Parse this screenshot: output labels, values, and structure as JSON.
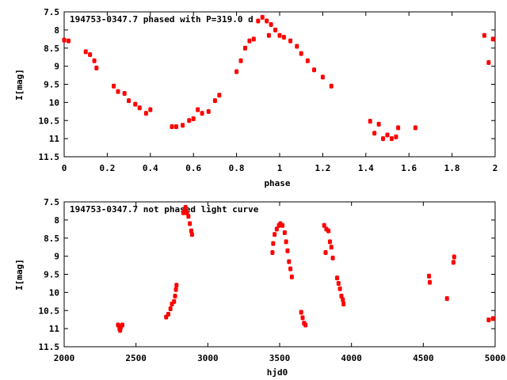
{
  "colors": {
    "points": "#ff0000",
    "axes": "#000000"
  },
  "chart_data": [
    {
      "type": "scatter",
      "title": "194753-0347.7 phased with P=319.0 d",
      "xlabel": "phase",
      "ylabel": "I[mag]",
      "xlim": [
        0,
        2
      ],
      "ylim": [
        7.5,
        11.5
      ],
      "y_inverted": true,
      "grid": false,
      "xticks": [
        "0",
        "0.2",
        "0.4",
        "0.6",
        "0.8",
        "1",
        "1.2",
        "1.4",
        "1.6",
        "1.8",
        "2"
      ],
      "yticks": [
        "7.5",
        "8",
        "8.5",
        "9",
        "9.5",
        "10",
        "10.5",
        "11",
        "11.5"
      ],
      "points": [
        [
          0,
          8.28
        ],
        [
          0.02,
          8.3
        ],
        [
          0.1,
          8.6
        ],
        [
          0.12,
          8.68
        ],
        [
          0.14,
          8.85
        ],
        [
          0.15,
          9.05
        ],
        [
          0.23,
          9.55
        ],
        [
          0.25,
          9.7
        ],
        [
          0.28,
          9.75
        ],
        [
          0.3,
          9.95
        ],
        [
          0.33,
          10.05
        ],
        [
          0.35,
          10.15
        ],
        [
          0.38,
          10.3
        ],
        [
          0.4,
          10.2
        ],
        [
          0.5,
          10.67
        ],
        [
          0.52,
          10.67
        ],
        [
          0.55,
          10.63
        ],
        [
          0.58,
          10.5
        ],
        [
          0.6,
          10.45
        ],
        [
          0.62,
          10.2
        ],
        [
          0.64,
          10.3
        ],
        [
          0.67,
          10.25
        ],
        [
          0.7,
          9.95
        ],
        [
          0.72,
          9.8
        ],
        [
          0.8,
          9.15
        ],
        [
          0.82,
          8.85
        ],
        [
          0.84,
          8.5
        ],
        [
          0.86,
          8.3
        ],
        [
          0.88,
          8.25
        ],
        [
          0.9,
          7.75
        ],
        [
          0.92,
          7.65
        ],
        [
          0.94,
          7.75
        ],
        [
          0.96,
          7.85
        ],
        [
          0.98,
          8.0
        ],
        [
          0.95,
          8.15
        ],
        [
          1.0,
          8.15
        ],
        [
          1.02,
          8.2
        ],
        [
          1.05,
          8.3
        ],
        [
          1.08,
          8.45
        ],
        [
          1.1,
          8.65
        ],
        [
          1.13,
          8.85
        ],
        [
          1.16,
          9.1
        ],
        [
          1.2,
          9.3
        ],
        [
          1.24,
          9.55
        ],
        [
          1.42,
          10.52
        ],
        [
          1.44,
          10.85
        ],
        [
          1.46,
          10.6
        ],
        [
          1.48,
          11.0
        ],
        [
          1.5,
          10.9
        ],
        [
          1.52,
          11.0
        ],
        [
          1.54,
          10.95
        ],
        [
          1.55,
          10.7
        ],
        [
          1.63,
          10.7
        ],
        [
          1.95,
          8.15
        ],
        [
          1.97,
          8.9
        ],
        [
          1.99,
          8.25
        ]
      ]
    },
    {
      "type": "scatter",
      "title": "194753-0347.7 not phased light curve",
      "xlabel": "hjd0",
      "ylabel": "I[mag]",
      "xlim": [
        2000,
        5000
      ],
      "ylim": [
        7.5,
        11.5
      ],
      "y_inverted": true,
      "grid": false,
      "xticks": [
        "2000",
        "2500",
        "3000",
        "3500",
        "4000",
        "4500",
        "5000"
      ],
      "yticks": [
        "7.5",
        "8",
        "8.5",
        "9",
        "9.5",
        "10",
        "10.5",
        "11",
        "11.5"
      ],
      "points": [
        [
          2375,
          10.9
        ],
        [
          2385,
          11.0
        ],
        [
          2390,
          11.05
        ],
        [
          2395,
          10.95
        ],
        [
          2405,
          10.9
        ],
        [
          2710,
          10.68
        ],
        [
          2725,
          10.6
        ],
        [
          2740,
          10.45
        ],
        [
          2750,
          10.32
        ],
        [
          2765,
          10.25
        ],
        [
          2772,
          10.1
        ],
        [
          2778,
          9.92
        ],
        [
          2782,
          9.8
        ],
        [
          2830,
          7.8
        ],
        [
          2840,
          7.7
        ],
        [
          2845,
          7.65
        ],
        [
          2855,
          7.8
        ],
        [
          2865,
          7.9
        ],
        [
          2875,
          8.1
        ],
        [
          2885,
          8.3
        ],
        [
          2890,
          8.4
        ],
        [
          3450,
          8.9
        ],
        [
          3455,
          8.65
        ],
        [
          3465,
          8.4
        ],
        [
          3480,
          8.25
        ],
        [
          3495,
          8.15
        ],
        [
          3505,
          8.1
        ],
        [
          3520,
          8.15
        ],
        [
          3535,
          8.35
        ],
        [
          3545,
          8.6
        ],
        [
          3555,
          8.85
        ],
        [
          3565,
          9.15
        ],
        [
          3575,
          9.35
        ],
        [
          3585,
          9.57
        ],
        [
          3650,
          10.55
        ],
        [
          3660,
          10.7
        ],
        [
          3670,
          10.85
        ],
        [
          3680,
          10.9
        ],
        [
          3810,
          8.15
        ],
        [
          3820,
          8.9
        ],
        [
          3825,
          8.25
        ],
        [
          3840,
          8.3
        ],
        [
          3850,
          8.6
        ],
        [
          3860,
          8.75
        ],
        [
          3870,
          9.05
        ],
        [
          3900,
          9.6
        ],
        [
          3910,
          9.75
        ],
        [
          3920,
          9.9
        ],
        [
          3930,
          10.1
        ],
        [
          3940,
          10.2
        ],
        [
          3945,
          10.32
        ],
        [
          4540,
          9.55
        ],
        [
          4545,
          9.72
        ],
        [
          4665,
          10.17
        ],
        [
          4710,
          9.17
        ],
        [
          4715,
          9.02
        ],
        [
          4955,
          10.76
        ],
        [
          4985,
          10.72
        ]
      ]
    }
  ]
}
